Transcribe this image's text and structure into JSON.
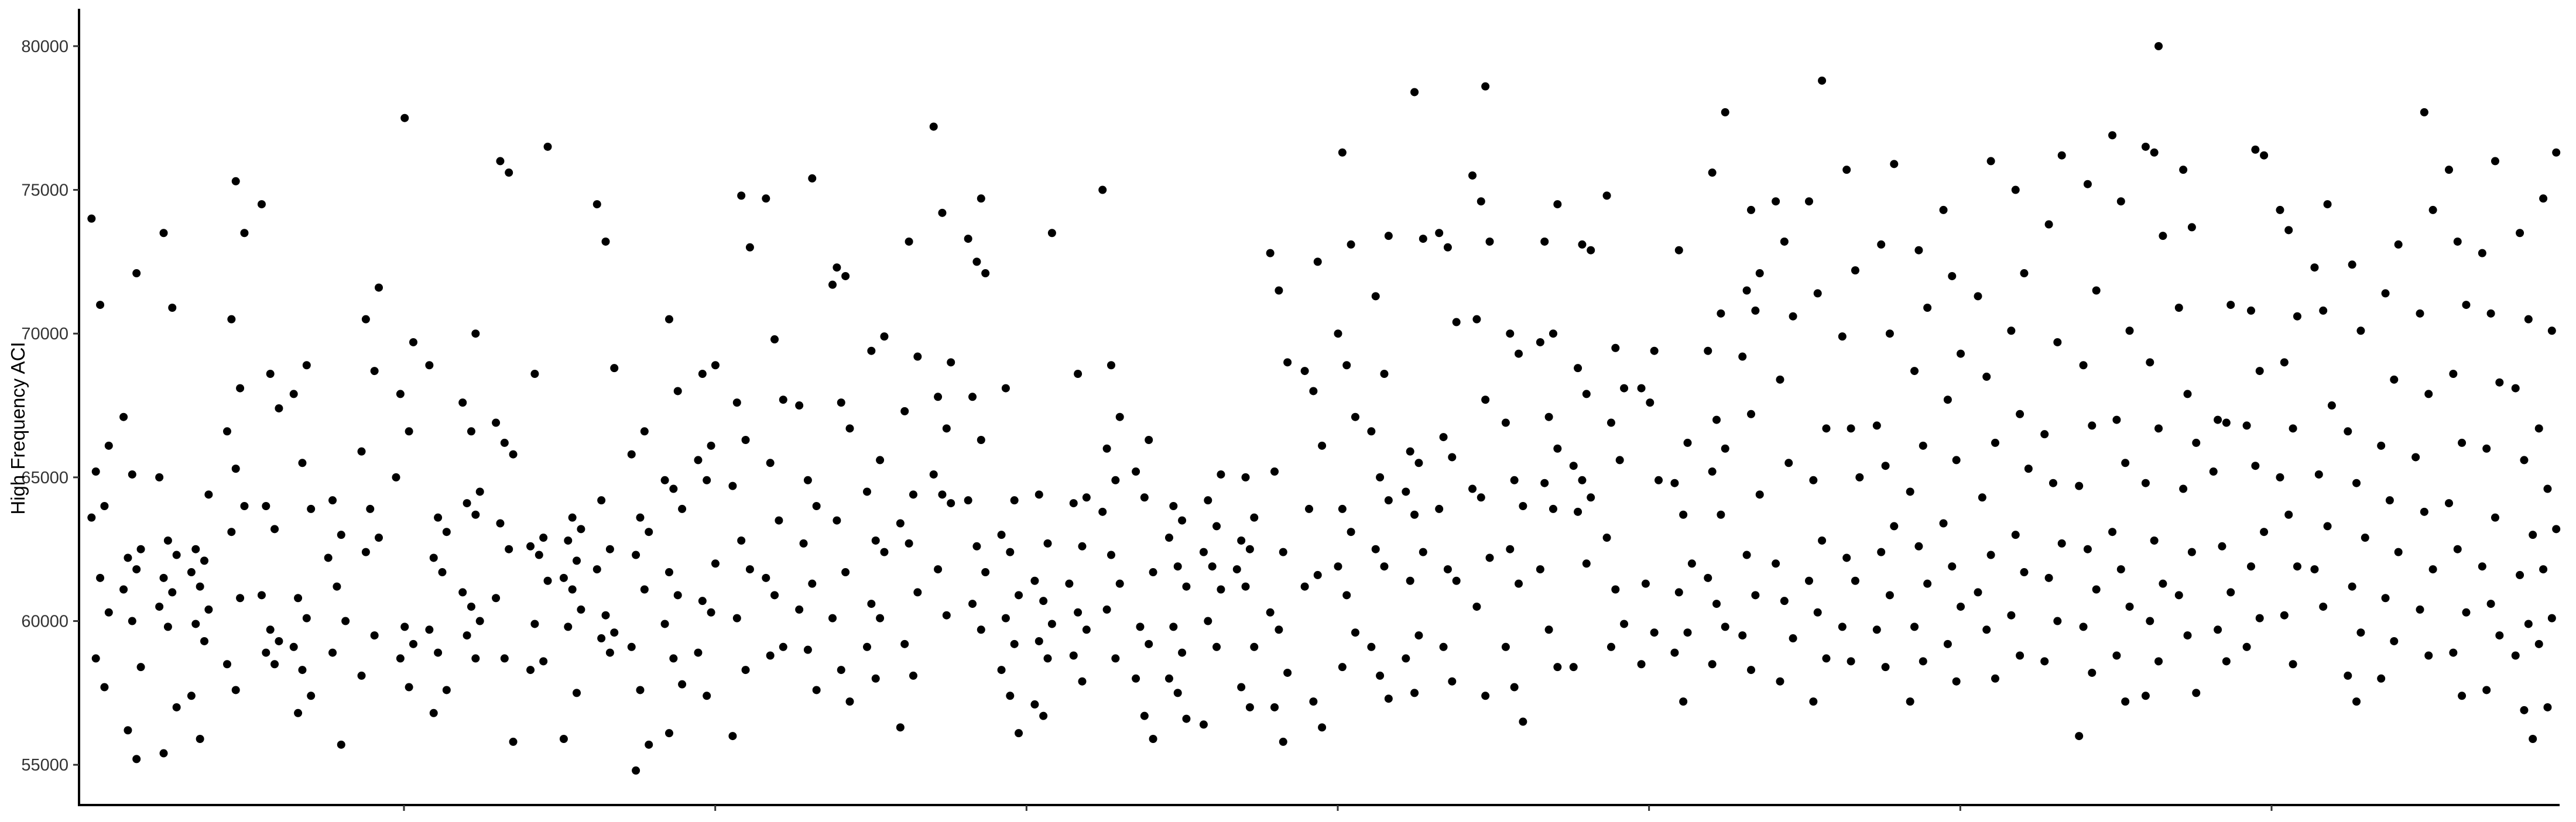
{
  "chart_data": {
    "type": "scatter",
    "title": "",
    "xlabel": "",
    "ylabel": "High Frequency ACI",
    "ylim": [
      53600,
      81300
    ],
    "y_ticks": [
      55000,
      60000,
      65000,
      70000,
      75000,
      80000
    ],
    "y_tick_labels": [
      "55000",
      "60000",
      "65000",
      "70000",
      "75000",
      "80000"
    ],
    "xlim": [
      0,
      1
    ],
    "x_tick_count": 7,
    "x_tick_labels": [],
    "grid": false,
    "legend": "none",
    "point_color": "#000000",
    "x_groups": [
      0.005,
      0.018,
      0.0325,
      0.0455,
      0.06,
      0.074,
      0.087,
      0.101,
      0.1145,
      0.1285,
      0.142,
      0.1555,
      0.169,
      0.183,
      0.1965,
      0.21,
      0.224,
      0.2375,
      0.251,
      0.265,
      0.2785,
      0.292,
      0.3055,
      0.3195,
      0.333,
      0.3465,
      0.3605,
      0.374,
      0.3875,
      0.4015,
      0.415,
      0.4285,
      0.442,
      0.456,
      0.4695,
      0.483,
      0.497,
      0.5105,
      0.524,
      0.538,
      0.5515,
      0.565,
      0.5785,
      0.5925,
      0.606,
      0.6195,
      0.6335,
      0.647,
      0.6605,
      0.6745,
      0.688,
      0.7015,
      0.715,
      0.729,
      0.7425,
      0.756,
      0.77,
      0.7835,
      0.797,
      0.811,
      0.8245,
      0.838,
      0.8515,
      0.8655,
      0.879,
      0.8925,
      0.9065,
      0.92,
      0.9335,
      0.9475,
      0.961,
      0.9745,
      0.988,
      0.9975
    ],
    "jitter": 0.0035,
    "group_values": [
      [
        74000,
        71000,
        66100,
        65200,
        64000,
        63600,
        61500,
        60300,
        58700,
        57700
      ],
      [
        72100,
        67100,
        65100,
        62500,
        62200,
        61800,
        61100,
        60000,
        58400,
        56200,
        55200
      ],
      [
        73500,
        70900,
        65000,
        62800,
        62300,
        61500,
        61000,
        60500,
        59800,
        57000,
        55400
      ],
      [
        64400,
        62500,
        62100,
        61700,
        61200,
        60400,
        59900,
        59300,
        57400,
        55900
      ],
      [
        75300,
        73500,
        70500,
        68100,
        66600,
        65300,
        64000,
        63100,
        60800,
        58500,
        57600
      ],
      [
        74500,
        68600,
        67400,
        64000,
        63200,
        60900,
        59700,
        59300,
        58900,
        58500
      ],
      [
        68900,
        67900,
        65500,
        63900,
        60800,
        60100,
        59100,
        58300,
        57400,
        56800
      ],
      [
        64200,
        63000,
        62200,
        61200,
        60000,
        58900,
        55700
      ],
      [
        71600,
        70500,
        68700,
        65900,
        63900,
        62900,
        62400,
        59500,
        58100
      ],
      [
        77500,
        69700,
        67900,
        66600,
        65000,
        59800,
        59200,
        58700,
        57700
      ],
      [
        68900,
        63600,
        63100,
        62200,
        61700,
        59700,
        58900,
        57600,
        56800
      ],
      [
        70000,
        67600,
        66600,
        64500,
        64100,
        63700,
        61000,
        60500,
        60000,
        59500,
        58700
      ],
      [
        76000,
        75600,
        66900,
        66200,
        65800,
        63400,
        62500,
        60800,
        58700,
        55800
      ],
      [
        76500,
        68600,
        62900,
        62600,
        62300,
        61400,
        59900,
        58600,
        58300
      ],
      [
        63600,
        63200,
        62800,
        62100,
        61500,
        61100,
        60400,
        59800,
        57500,
        55900
      ],
      [
        74500,
        73200,
        68800,
        64200,
        62500,
        61800,
        60200,
        59600,
        59400,
        58900
      ],
      [
        66600,
        65800,
        63600,
        63100,
        62300,
        61100,
        59100,
        57600,
        55700,
        54800
      ],
      [
        70500,
        68000,
        64900,
        64600,
        63900,
        61700,
        60900,
        59900,
        58700,
        57800,
        56100
      ],
      [
        68900,
        68600,
        66100,
        65600,
        64900,
        62000,
        60700,
        60300,
        58900,
        57400
      ],
      [
        74800,
        73000,
        67600,
        66300,
        64700,
        62800,
        61800,
        60100,
        58300,
        56000
      ],
      [
        74700,
        69800,
        67700,
        65500,
        63500,
        61500,
        60900,
        59100,
        58800
      ],
      [
        75400,
        67500,
        64900,
        64000,
        62700,
        61300,
        60400,
        59000,
        57600
      ],
      [
        72300,
        72000,
        71700,
        67600,
        66700,
        63500,
        61700,
        60100,
        58300,
        57200
      ],
      [
        69900,
        69400,
        65600,
        64500,
        62800,
        62400,
        60600,
        60100,
        59100,
        58000
      ],
      [
        73200,
        69200,
        67300,
        64400,
        63400,
        62700,
        61000,
        59200,
        58100,
        56300
      ],
      [
        77200,
        74200,
        69000,
        67800,
        66700,
        65100,
        64400,
        64100,
        61800,
        60200
      ],
      [
        74700,
        73300,
        72500,
        72100,
        67800,
        66300,
        64200,
        62600,
        61700,
        60600,
        59700
      ],
      [
        68100,
        64200,
        63000,
        62400,
        60900,
        60100,
        59200,
        58300,
        57400,
        56100
      ],
      [
        73500,
        64400,
        62700,
        61400,
        60700,
        59900,
        59300,
        58700,
        57100,
        56700
      ],
      [
        68600,
        64300,
        64100,
        62600,
        61300,
        60300,
        59700,
        58800,
        57900
      ],
      [
        75000,
        68900,
        67100,
        66000,
        64900,
        63800,
        62300,
        61300,
        60400,
        58700
      ],
      [
        66300,
        65200,
        64300,
        61700,
        59800,
        59200,
        58000,
        56700,
        55900
      ],
      [
        64000,
        63500,
        62900,
        61900,
        61200,
        59800,
        58900,
        58000,
        57500,
        56600
      ],
      [
        65100,
        64200,
        63300,
        62400,
        61900,
        61100,
        60000,
        59100,
        56400
      ],
      [
        65000,
        63600,
        62800,
        62500,
        61800,
        61200,
        59100,
        57700,
        57000
      ],
      [
        72800,
        71500,
        69000,
        65200,
        62400,
        60300,
        59700,
        58200,
        57000,
        55800
      ],
      [
        72500,
        68700,
        68000,
        66100,
        63900,
        61600,
        61200,
        57200,
        56300
      ],
      [
        76300,
        73100,
        70000,
        68900,
        67100,
        63900,
        63100,
        61900,
        60900,
        59600,
        58400
      ],
      [
        73400,
        71300,
        68600,
        66600,
        65000,
        64200,
        62500,
        61900,
        59100,
        58100,
        57300
      ],
      [
        78400,
        73300,
        65900,
        65500,
        64500,
        63700,
        62400,
        61400,
        59500,
        58700,
        57500
      ],
      [
        73500,
        73000,
        70400,
        66400,
        65700,
        63900,
        61800,
        61400,
        59100,
        57900
      ],
      [
        78600,
        75500,
        74600,
        73200,
        70500,
        67700,
        64600,
        64300,
        62200,
        60500,
        57400
      ],
      [
        70000,
        69300,
        66900,
        64900,
        64000,
        62500,
        61300,
        59100,
        57700,
        56500
      ],
      [
        74500,
        73200,
        70000,
        69700,
        67100,
        66000,
        64800,
        63900,
        61800,
        59700,
        58400
      ],
      [
        73100,
        72900,
        68800,
        67900,
        65400,
        64900,
        64300,
        63800,
        62000,
        58400
      ],
      [
        74800,
        69500,
        68100,
        66900,
        65600,
        62900,
        61100,
        59900,
        59100
      ],
      [
        69400,
        68100,
        67600,
        64900,
        61300,
        59600,
        58500
      ],
      [
        72900,
        66200,
        64800,
        63700,
        62000,
        61000,
        59600,
        58900,
        57200
      ],
      [
        77700,
        75600,
        70700,
        69400,
        67000,
        66000,
        65200,
        63700,
        61500,
        60600,
        59800,
        58500
      ],
      [
        74300,
        72100,
        71500,
        70800,
        69200,
        67200,
        64400,
        62300,
        60900,
        59500,
        58300
      ],
      [
        74600,
        73200,
        70600,
        68400,
        65500,
        62000,
        60700,
        59400,
        57900
      ],
      [
        78800,
        74600,
        71400,
        66700,
        64900,
        62800,
        61400,
        60300,
        58700,
        57200
      ],
      [
        75700,
        72200,
        69900,
        66700,
        65000,
        62200,
        61400,
        59800,
        58600
      ],
      [
        75900,
        73100,
        70000,
        66800,
        65400,
        63300,
        62400,
        60900,
        59700,
        58400
      ],
      [
        72900,
        70900,
        68700,
        66100,
        64500,
        62600,
        61300,
        59800,
        58600,
        57200
      ],
      [
        74300,
        72000,
        69300,
        67700,
        65600,
        63400,
        61900,
        60500,
        59200,
        57900
      ],
      [
        76000,
        71300,
        68500,
        66200,
        64300,
        62300,
        61000,
        59700,
        58000
      ],
      [
        75000,
        72100,
        70100,
        67200,
        65300,
        63000,
        61700,
        60200,
        58800
      ],
      [
        76200,
        73800,
        69700,
        66500,
        64800,
        62700,
        61500,
        60000,
        58600
      ],
      [
        75200,
        71500,
        68900,
        66800,
        64700,
        62500,
        61100,
        59800,
        58200,
        56000
      ],
      [
        76900,
        74600,
        70100,
        67000,
        65500,
        63100,
        61800,
        60500,
        58800,
        57200
      ],
      [
        80000,
        76500,
        76300,
        73400,
        69000,
        66700,
        64800,
        62800,
        61300,
        60000,
        58600,
        57400
      ],
      [
        75700,
        73700,
        70900,
        67900,
        66200,
        64600,
        62400,
        60900,
        59500,
        57500
      ],
      [
        71000,
        67000,
        66900,
        65200,
        62600,
        61000,
        59700,
        58600
      ],
      [
        76400,
        76200,
        70800,
        68700,
        66800,
        65400,
        63100,
        61900,
        60100,
        59100
      ],
      [
        74300,
        73600,
        70600,
        69000,
        66700,
        65000,
        63700,
        61900,
        60200,
        58500
      ],
      [
        74500,
        72300,
        70800,
        67500,
        65100,
        63300,
        61800,
        60500
      ],
      [
        72400,
        70100,
        66600,
        64800,
        62900,
        61200,
        59600,
        58100,
        57200
      ],
      [
        73100,
        71400,
        68400,
        66100,
        64200,
        62400,
        60800,
        59300,
        58000
      ],
      [
        77700,
        74300,
        70700,
        67900,
        65700,
        63800,
        61800,
        60400,
        58800
      ],
      [
        75700,
        73200,
        71000,
        68600,
        66200,
        64100,
        62500,
        60300,
        58900,
        57400
      ],
      [
        76000,
        72800,
        70700,
        68300,
        66000,
        63600,
        61900,
        60600,
        59500,
        57600
      ],
      [
        73500,
        70500,
        68100,
        65600,
        63000,
        61600,
        59900,
        58800,
        56900,
        55900
      ],
      [
        76300,
        74700,
        70100,
        66700,
        64600,
        63200,
        61800,
        60100,
        59200,
        57000
      ]
    ]
  }
}
